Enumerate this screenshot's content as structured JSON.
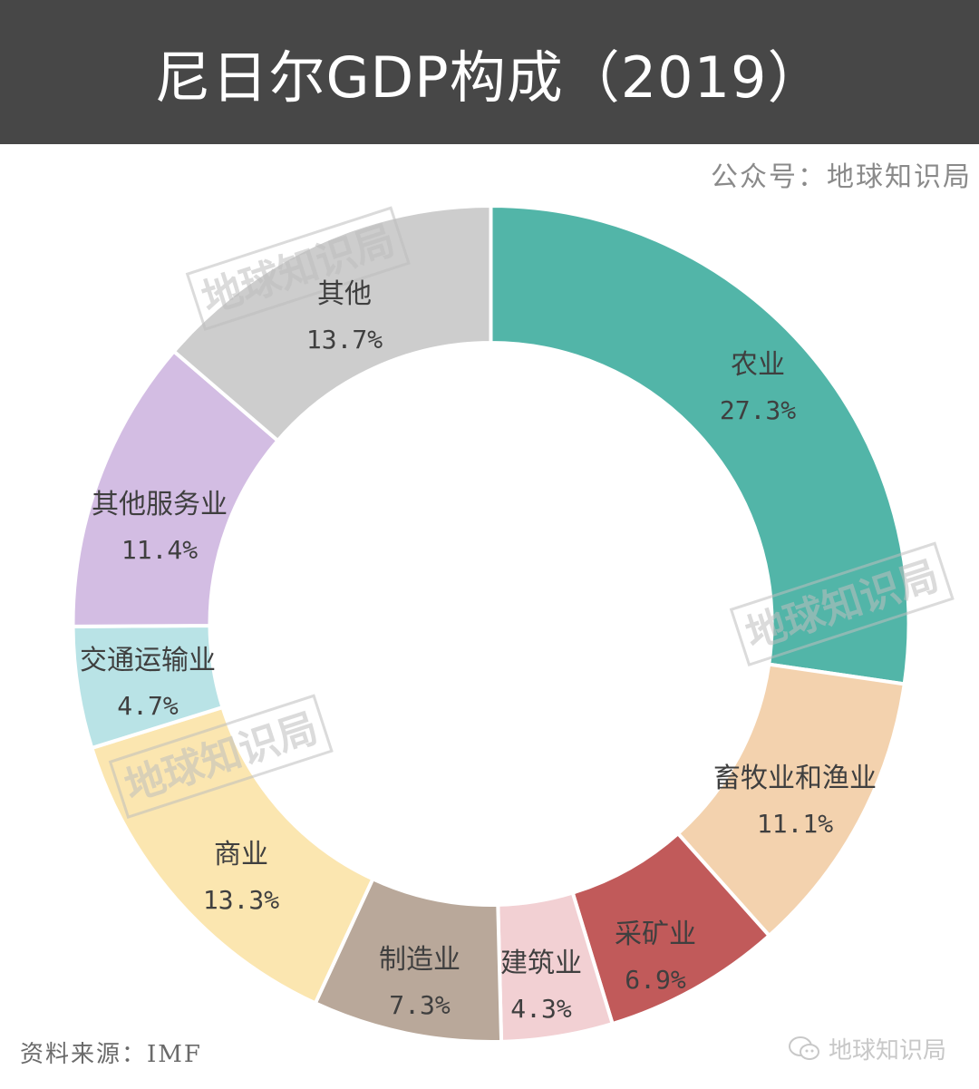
{
  "header": {
    "title": "尼日尔GDP构成（2019）"
  },
  "credit": "公众号：地球知识局",
  "footer": {
    "source": "资料来源：IMF",
    "brand": "地球知识局",
    "brand_icon": "wechat-icon"
  },
  "watermark": "地球知识局",
  "colors": {
    "header_bg": "#474747",
    "agriculture": "#52B5A8",
    "livestock_fishery": "#F3D2AE",
    "mining": "#C15A5A",
    "construction": "#F2D0D3",
    "manufacturing": "#B9A89A",
    "commerce": "#FBE6B0",
    "transport": "#B9E3E6",
    "other_services": "#D3BDE3",
    "other": "#CDCDCD"
  },
  "chart_data": {
    "type": "pie",
    "variant": "donut",
    "title": "尼日尔GDP构成（2019）",
    "start_angle_deg": 0,
    "direction": "clockwise",
    "categories": [
      "农业",
      "畜牧业和渔业",
      "采矿业",
      "建筑业",
      "制造业",
      "商业",
      "交通运输业",
      "其他服务业",
      "其他"
    ],
    "values": [
      27.3,
      11.1,
      6.9,
      4.3,
      7.3,
      13.3,
      4.7,
      11.4,
      13.7
    ],
    "value_labels": [
      "27.3%",
      "11.1%",
      "6.9%",
      "4.3%",
      "7.3%",
      "13.3%",
      "4.7%",
      "11.4%",
      "13.7%"
    ],
    "colors": [
      "#52B5A8",
      "#F3D2AE",
      "#C15A5A",
      "#F2D0D3",
      "#B9A89A",
      "#FBE6B0",
      "#B9E3E6",
      "#D3BDE3",
      "#CDCDCD"
    ],
    "unit": "%",
    "source": "IMF"
  }
}
